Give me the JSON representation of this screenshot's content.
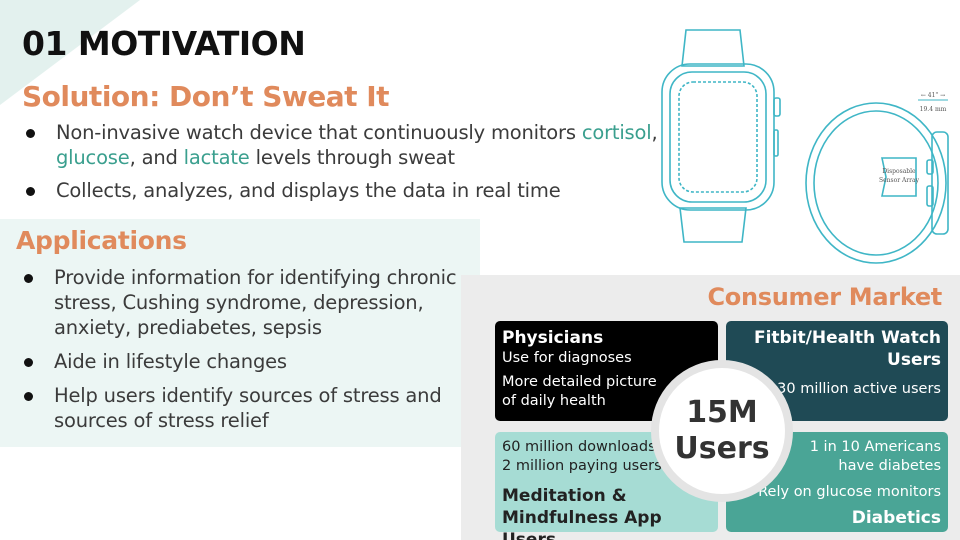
{
  "slide": {
    "title": "01 MOTIVATION",
    "solution_heading": "Solution: Don’t Sweat It",
    "solution_bullets": [
      {
        "parts": [
          {
            "text": "Non-invasive watch device that continuously monitors "
          },
          {
            "text": "cortisol",
            "accent": true
          },
          {
            "text": ", "
          },
          {
            "text": "glucose",
            "accent": true
          },
          {
            "text": ", and "
          },
          {
            "text": "lactate",
            "accent": true
          },
          {
            "text": " levels through sweat"
          }
        ]
      },
      {
        "parts": [
          {
            "text": "Collects, analyzes, and displays the data in real time"
          }
        ]
      }
    ],
    "applications_heading": "Applications",
    "applications_bullets": [
      "Provide information for identifying chronic stress, Cushing syndrome, depression, anxiety, prediabetes, sepsis",
      "Aide in lifestyle changes",
      "Help users identify sources of stress and sources of stress relief"
    ],
    "watch_art": {
      "band_label_line1": "Disposable",
      "band_label_line2": "Sensor Array",
      "dimension_line1": "← 41\" →",
      "dimension_line2": "19.4 mm"
    },
    "market": {
      "heading": "Consumer Market",
      "center_number": "15M",
      "center_label": "Users",
      "physicians": {
        "title": "Physicians",
        "line1": "Use for diagnoses",
        "line2": "More detailed picture",
        "line3": "of daily health"
      },
      "fitbit": {
        "title_line1": "Fitbit/Health Watch",
        "title_line2": "Users",
        "line1": "30 million active users"
      },
      "meditation": {
        "line1": "60 million downloads",
        "line2": "2 million paying users",
        "title_line1": "Meditation &",
        "title_line2": "Mindfulness App Users"
      },
      "diabetics": {
        "line1": "1 in 10 Americans",
        "line2": "have diabetes",
        "line3": "Rely on glucose monitors",
        "title": "Diabetics"
      }
    },
    "colors": {
      "accent_orange": "#e08a5c",
      "accent_teal": "#3a9f8e",
      "dark_teal": "#1f4a55",
      "mid_teal": "#4aa596",
      "light_teal": "#a6dcd4",
      "panel_bg": "#ecf6f4",
      "market_bg": "#ececec"
    }
  }
}
